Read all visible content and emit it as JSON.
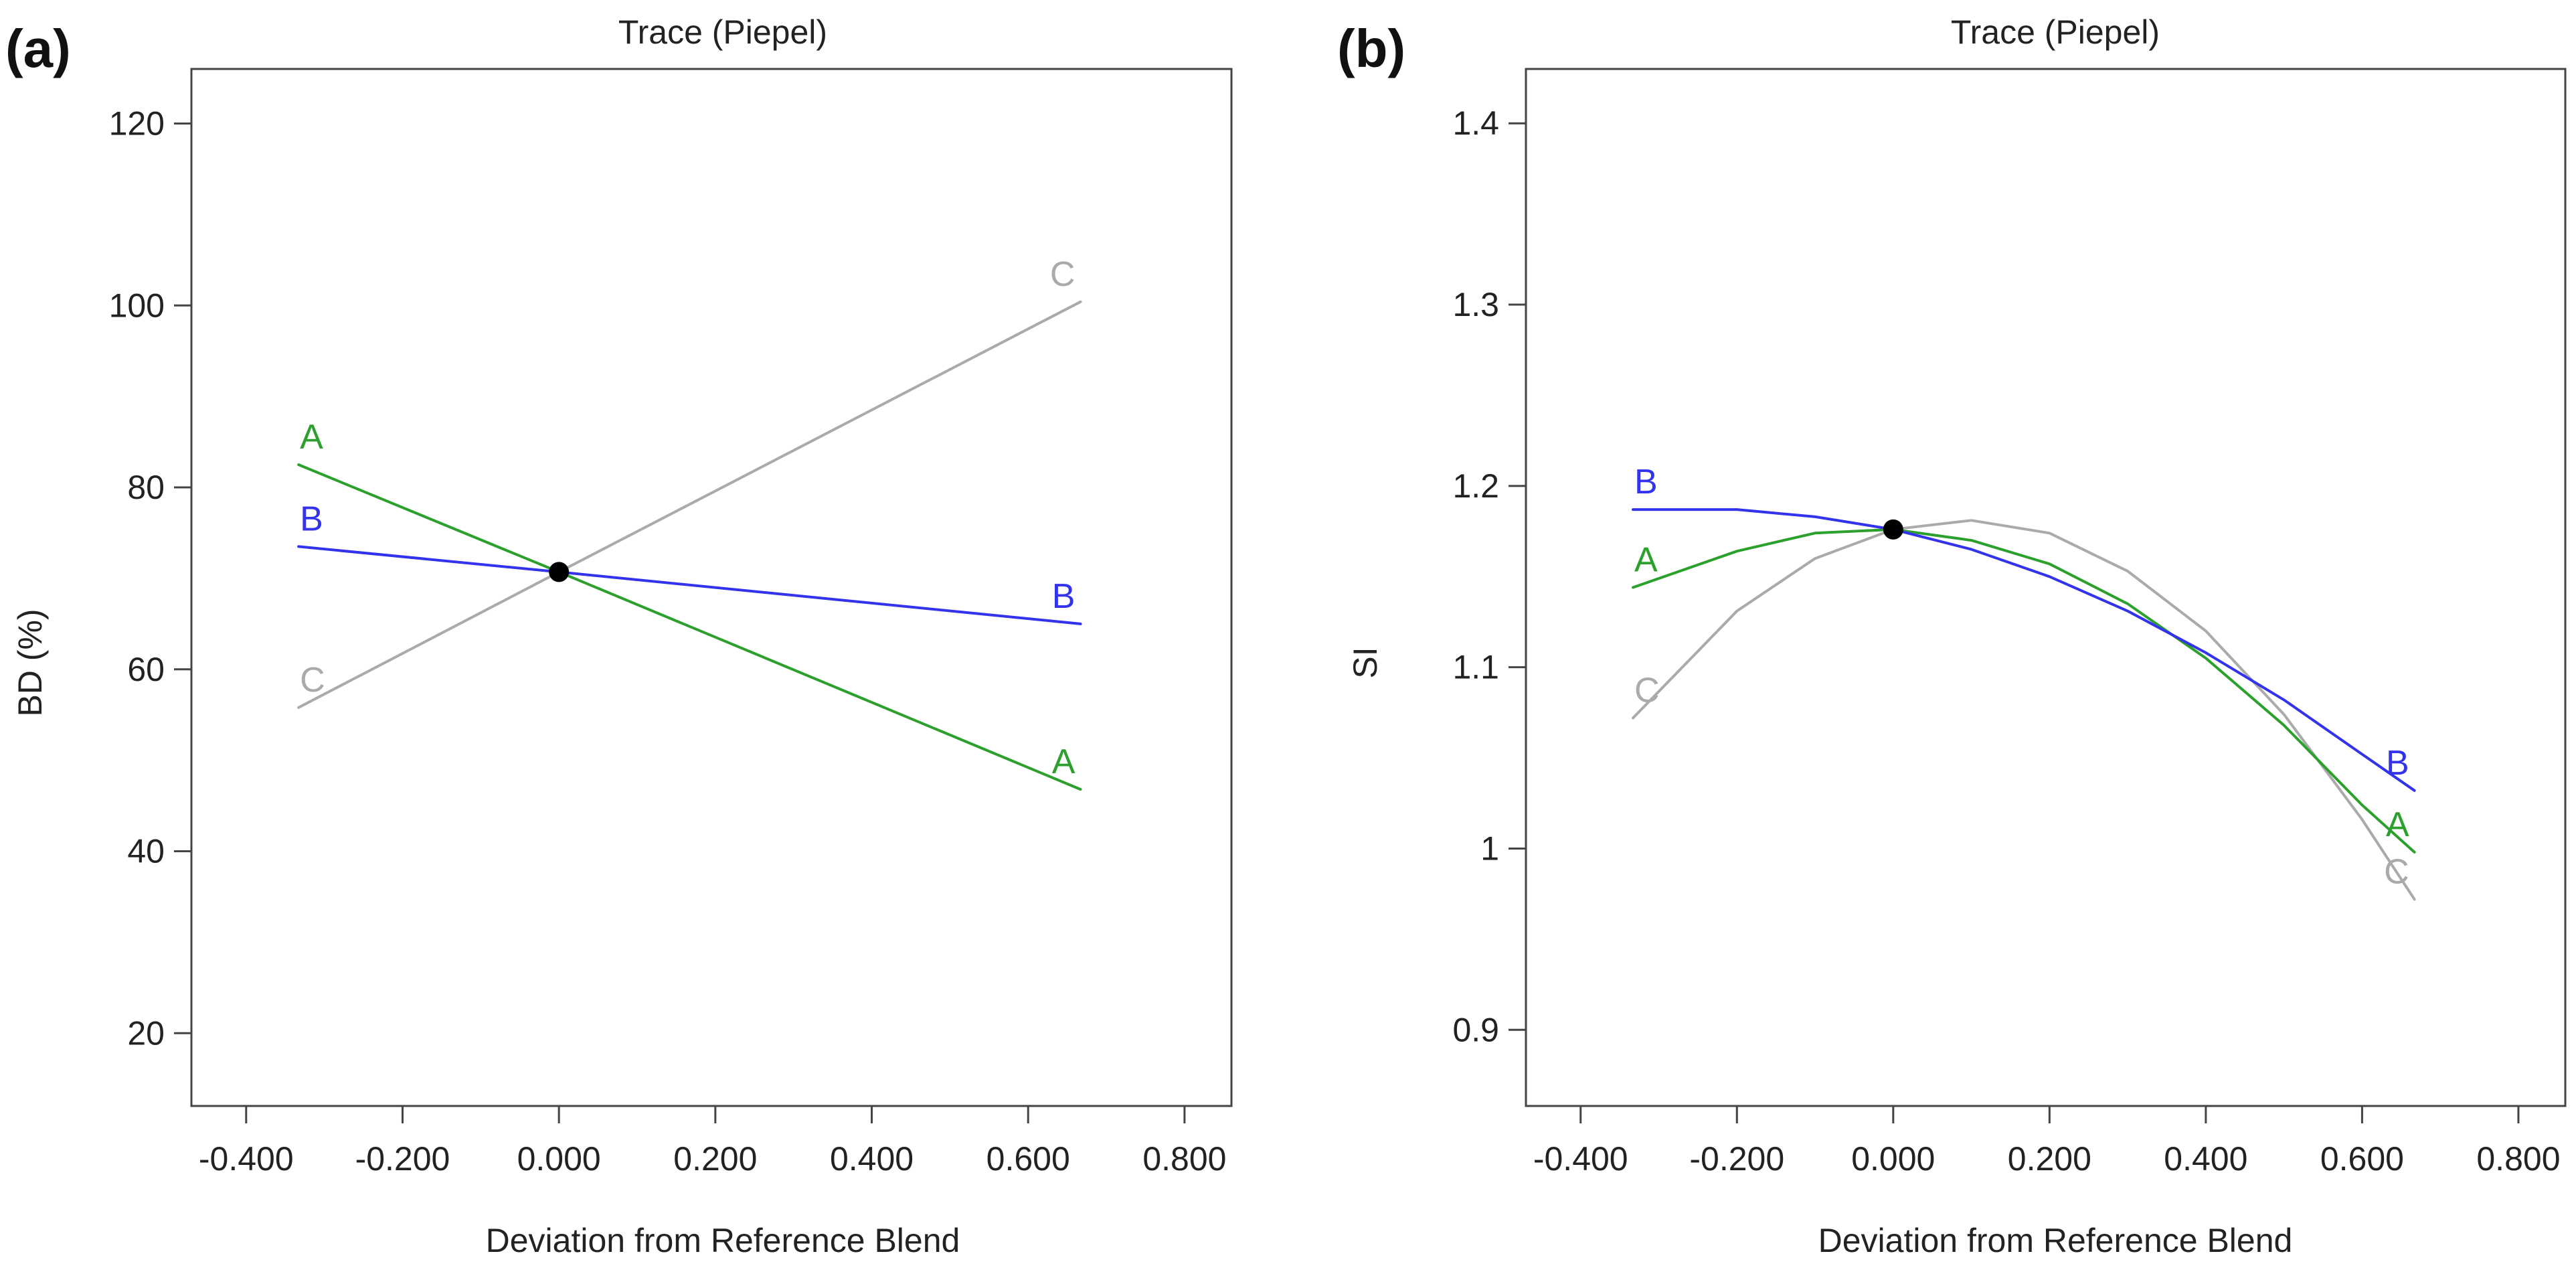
{
  "colors": {
    "A": "#2ca02c",
    "B": "#3333ee",
    "C": "#aaaaaa",
    "ref_point": "#000000",
    "axes": "#444444"
  },
  "chart_data": [
    {
      "panel_label": "(a)",
      "type": "line",
      "title": "Trace (Piepel)",
      "xlabel": "Deviation from Reference Blend",
      "ylabel": "BD (%)",
      "xlim": [
        -0.47,
        0.86
      ],
      "ylim": [
        12,
        126
      ],
      "xticks": [
        -0.4,
        -0.2,
        0.0,
        0.2,
        0.4,
        0.6,
        0.8
      ],
      "xtick_labels": [
        "-0.400",
        "-0.200",
        "0.000",
        "0.200",
        "0.400",
        "0.600",
        "0.800"
      ],
      "yticks": [
        20,
        40,
        60,
        80,
        100,
        120
      ],
      "ytick_labels": [
        "20",
        "40",
        "60",
        "80",
        "100",
        "120"
      ],
      "reference_point": {
        "x": 0.0,
        "y": 70.7
      },
      "series": [
        {
          "name": "A",
          "label_start": "A",
          "label_end": "A",
          "x": [
            -0.333,
            0.0,
            0.667
          ],
          "y": [
            82.5,
            70.7,
            46.8
          ]
        },
        {
          "name": "B",
          "label_start": "B",
          "label_end": "B",
          "x": [
            -0.333,
            0.0,
            0.667
          ],
          "y": [
            73.5,
            70.7,
            65.0
          ]
        },
        {
          "name": "C",
          "label_start": "C",
          "label_end": "C",
          "x": [
            -0.333,
            0.0,
            0.667
          ],
          "y": [
            55.8,
            70.7,
            100.4
          ]
        }
      ]
    },
    {
      "panel_label": "(b)",
      "type": "line",
      "title": "Trace (Piepel)",
      "xlabel": "Deviation from Reference Blend",
      "ylabel": "SI",
      "xlim": [
        -0.47,
        0.86
      ],
      "ylim": [
        0.858,
        1.43
      ],
      "xticks": [
        -0.4,
        -0.2,
        0.0,
        0.2,
        0.4,
        0.6,
        0.8
      ],
      "xtick_labels": [
        "-0.400",
        "-0.200",
        "0.000",
        "0.200",
        "0.400",
        "0.600",
        "0.800"
      ],
      "yticks": [
        0.9,
        1.0,
        1.1,
        1.2,
        1.3,
        1.4
      ],
      "ytick_labels": [
        "0.9",
        "1",
        "1.1",
        "1.2",
        "1.3",
        "1.4"
      ],
      "reference_point": {
        "x": 0.0,
        "y": 1.176
      },
      "series": [
        {
          "name": "A",
          "label_start": "A",
          "label_end": "A",
          "x": [
            -0.333,
            -0.2,
            -0.1,
            0.0,
            0.1,
            0.2,
            0.3,
            0.4,
            0.5,
            0.6,
            0.667
          ],
          "y": [
            1.144,
            1.164,
            1.174,
            1.176,
            1.17,
            1.157,
            1.135,
            1.105,
            1.068,
            1.024,
            0.998
          ]
        },
        {
          "name": "B",
          "label_start": "B",
          "label_end": "B",
          "x": [
            -0.333,
            -0.2,
            -0.1,
            0.0,
            0.1,
            0.2,
            0.3,
            0.4,
            0.5,
            0.6,
            0.667
          ],
          "y": [
            1.187,
            1.187,
            1.183,
            1.176,
            1.165,
            1.15,
            1.131,
            1.108,
            1.082,
            1.052,
            1.032
          ]
        },
        {
          "name": "C",
          "label_start": "C",
          "label_end": "C",
          "x": [
            -0.333,
            -0.2,
            -0.1,
            0.0,
            0.1,
            0.2,
            0.3,
            0.4,
            0.5,
            0.6,
            0.667
          ],
          "y": [
            1.072,
            1.131,
            1.16,
            1.176,
            1.181,
            1.174,
            1.153,
            1.12,
            1.074,
            1.016,
            0.972
          ]
        }
      ]
    }
  ]
}
